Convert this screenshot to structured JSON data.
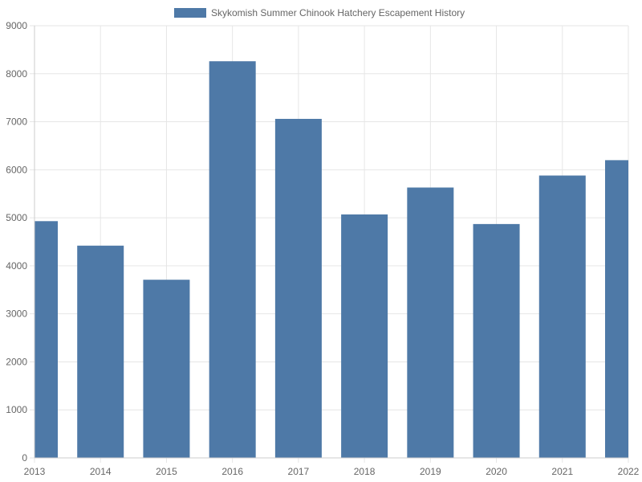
{
  "chart_data": {
    "type": "bar",
    "categories": [
      "2013",
      "2014",
      "2015",
      "2016",
      "2017",
      "2018",
      "2019",
      "2020",
      "2021",
      "2022"
    ],
    "series": [
      {
        "name": "Skykomish Summer Chinook Hatchery Escapement History",
        "values": [
          4930,
          4420,
          3710,
          8260,
          7060,
          5070,
          5630,
          4870,
          5880,
          6200
        ],
        "color": "#4e79a7"
      }
    ],
    "ylim": [
      0,
      9000
    ],
    "yticks": [
      0,
      1000,
      2000,
      3000,
      4000,
      5000,
      6000,
      7000,
      8000,
      9000
    ],
    "grid": true,
    "legend_position": "top-center",
    "grid_color": "#e6e6e6",
    "axis_color": "#cccccc"
  }
}
